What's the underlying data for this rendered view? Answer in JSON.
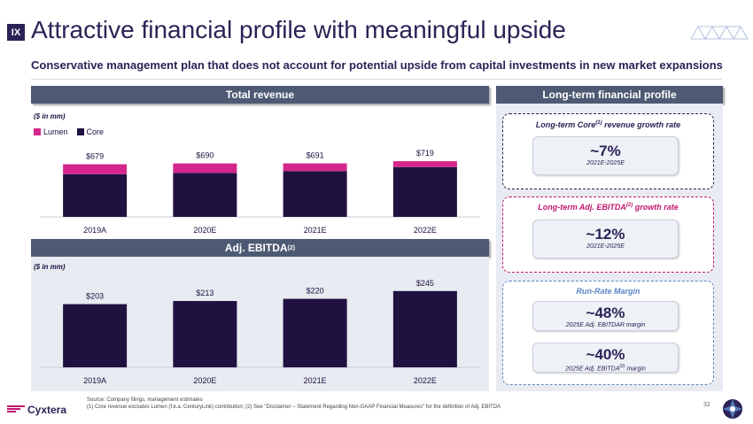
{
  "header": {
    "section": "IX",
    "title": "Attractive financial profile with meaningful upside",
    "subtitle": "Conservative management plan that does not account for potential upside from capital investments in new market expansions"
  },
  "colors": {
    "lumen": "#d4268c",
    "core": "#1f1140",
    "adj": "#1f1140",
    "navy": "#2b2356",
    "magenta": "#c2176f",
    "blue": "#5a85c4"
  },
  "revenue": {
    "heading": "Total revenue",
    "units": "($ in mm)",
    "legend": [
      "Lumen",
      "Core"
    ]
  },
  "ebitda": {
    "heading": "Adj. EBITDA",
    "heading_sup": "(2)",
    "units": "($ in mm)"
  },
  "chart_data": [
    {
      "type": "bar",
      "title": "Total revenue",
      "categories": [
        "2019A",
        "2020E",
        "2021E",
        "2022E"
      ],
      "series": [
        {
          "name": "Core",
          "values": [
            551,
            567,
            590,
            643
          ]
        },
        {
          "name": "Lumen",
          "values": [
            128,
            123,
            101,
            76
          ]
        }
      ],
      "totals": [
        679,
        690,
        691,
        719
      ],
      "total_labels": [
        "$679",
        "$690",
        "$691",
        "$719"
      ],
      "stacked": true,
      "ylim": [
        0,
        800
      ]
    },
    {
      "type": "bar",
      "title": "Adj. EBITDA",
      "categories": [
        "2019A",
        "2020E",
        "2021E",
        "2022E"
      ],
      "values": [
        203,
        213,
        220,
        245
      ],
      "value_labels": [
        "$203",
        "$213",
        "$220",
        "$245"
      ],
      "ylim": [
        0,
        270
      ]
    }
  ],
  "profile": {
    "heading": "Long-term financial profile",
    "core_growth": {
      "title": "Long-term Core",
      "title_sup": "(1)",
      "title_end": " revenue growth rate",
      "value": "~7%",
      "period": "2021E-2025E"
    },
    "ebitda_growth": {
      "title": "Long-term Adj. EBITDA",
      "title_sup": "(2)",
      "title_end": " growth rate",
      "value": "~12%",
      "period": "2021E-2025E"
    },
    "run_rate": {
      "title": "Run-Rate Margin",
      "ebitdar": {
        "value": "~48%",
        "note": "2025E Adj. EBITDAR margin"
      },
      "ebitda": {
        "value": "~40%",
        "note_pre": "2025E Adj. EBITDA",
        "note_sup": "(2)",
        "note_post": " margin"
      }
    }
  },
  "footer": {
    "source": "Source: Company filings, management estimates",
    "note": "(1) Core revenue excludes Lumen (f.k.a. CenturyLink) contribution; (2) See \"Disclaimer – Statement Regarding Non-GAAP Financial Measures\" for the definition of Adj. EBITDA",
    "logo": "Cyxtera",
    "page": "32"
  }
}
